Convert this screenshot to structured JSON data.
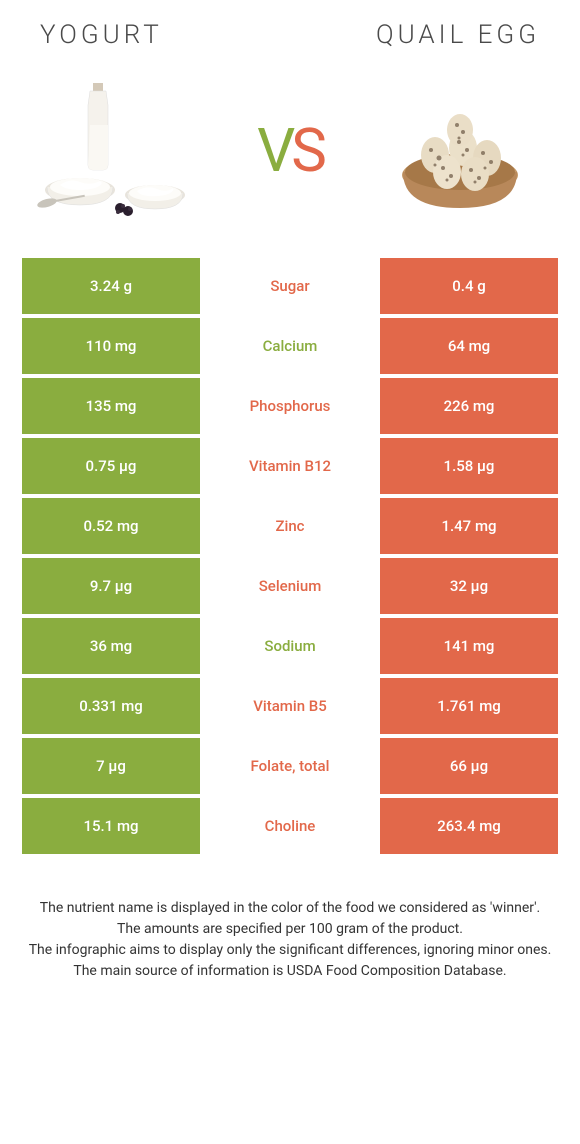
{
  "header": {
    "left_title": "Yogurt",
    "right_title": "Quail egg"
  },
  "vs": {
    "v": "V",
    "s": "S"
  },
  "colors": {
    "green": "#8aad3f",
    "orange": "#e2684a",
    "text": "#4a4a4a",
    "white": "#ffffff"
  },
  "table": {
    "rows": [
      {
        "left": "3.24 g",
        "label": "Sugar",
        "right": "0.4 g",
        "winner": "orange"
      },
      {
        "left": "110 mg",
        "label": "Calcium",
        "right": "64 mg",
        "winner": "green"
      },
      {
        "left": "135 mg",
        "label": "Phosphorus",
        "right": "226 mg",
        "winner": "orange"
      },
      {
        "left": "0.75 µg",
        "label": "Vitamin B12",
        "right": "1.58 µg",
        "winner": "orange"
      },
      {
        "left": "0.52 mg",
        "label": "Zinc",
        "right": "1.47 mg",
        "winner": "orange"
      },
      {
        "left": "9.7 µg",
        "label": "Selenium",
        "right": "32 µg",
        "winner": "orange"
      },
      {
        "left": "36 mg",
        "label": "Sodium",
        "right": "141 mg",
        "winner": "green"
      },
      {
        "left": "0.331 mg",
        "label": "Vitamin B5",
        "right": "1.761 mg",
        "winner": "orange"
      },
      {
        "left": "7 µg",
        "label": "Folate, total",
        "right": "66 µg",
        "winner": "orange"
      },
      {
        "left": "15.1 mg",
        "label": "Choline",
        "right": "263.4 mg",
        "winner": "orange"
      }
    ]
  },
  "footer": {
    "line1": "The nutrient name is displayed in the color of the food we considered as 'winner'.",
    "line2": "The amounts are specified per 100 gram of the product.",
    "line3": "The infographic aims to display only the significant differences, ignoring minor ones.",
    "line4": "The main source of information is USDA Food Composition Database."
  }
}
